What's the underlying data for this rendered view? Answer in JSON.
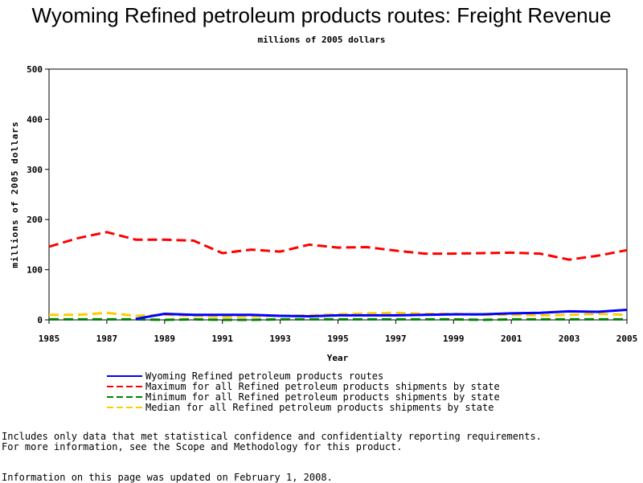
{
  "chart_data": {
    "type": "line",
    "title": "Wyoming Refined petroleum products routes: Freight Revenue",
    "subtitle": "millions of 2005 dollars",
    "xlabel": "Year",
    "ylabel": "millions of 2005 dollars",
    "xlim": [
      1985,
      2005
    ],
    "ylim": [
      0,
      500
    ],
    "x_ticks": [
      "1985",
      "1987",
      "1989",
      "1991",
      "1993",
      "1995",
      "1997",
      "1999",
      "2001",
      "2003",
      "2005"
    ],
    "y_ticks": [
      "0",
      "100",
      "200",
      "300",
      "400",
      "500"
    ],
    "grid": false,
    "legend_position": "bottom",
    "x": [
      1985,
      1986,
      1987,
      1988,
      1989,
      1990,
      1991,
      1992,
      1993,
      1994,
      1995,
      1996,
      1997,
      1998,
      1999,
      2000,
      2001,
      2002,
      2003,
      2004,
      2005
    ],
    "series": [
      {
        "name": "Wyoming Refined petroleum products routes",
        "color": "#0000ff",
        "dash": "solid",
        "values": [
          null,
          null,
          null,
          2,
          12,
          10,
          10,
          10,
          8,
          7,
          9,
          9,
          9,
          10,
          11,
          11,
          13,
          14,
          17,
          16,
          20
        ]
      },
      {
        "name": "Maximum for all Refined petroleum products shipments by state",
        "color": "#ff0000",
        "dash": "dashed",
        "values": [
          146,
          163,
          175,
          160,
          160,
          158,
          133,
          140,
          136,
          150,
          144,
          145,
          138,
          132,
          132,
          133,
          134,
          132,
          120,
          128,
          139
        ]
      },
      {
        "name": "Minimum for all Refined petroleum products shipments by state",
        "color": "#008000",
        "dash": "dashed",
        "values": [
          1,
          1,
          1,
          1,
          0,
          1,
          0,
          0,
          1,
          1,
          1,
          1,
          1,
          1,
          1,
          0,
          1,
          1,
          1,
          1,
          1
        ]
      },
      {
        "name": "Median for all Refined petroleum products shipments by state",
        "color": "#ffcc00",
        "dash": "dashed",
        "values": [
          10,
          10,
          14,
          8,
          10,
          8,
          6,
          7,
          8,
          9,
          11,
          13,
          14,
          12,
          12,
          10,
          10,
          9,
          10,
          12,
          10
        ]
      }
    ]
  },
  "footnotes": {
    "line1": "Includes only data that met statistical confidence and confidentialty reporting requirements.",
    "line2": "For more information, see the Scope and Methodology for this product.",
    "line3": "Information on this page was updated on February 1, 2008."
  }
}
